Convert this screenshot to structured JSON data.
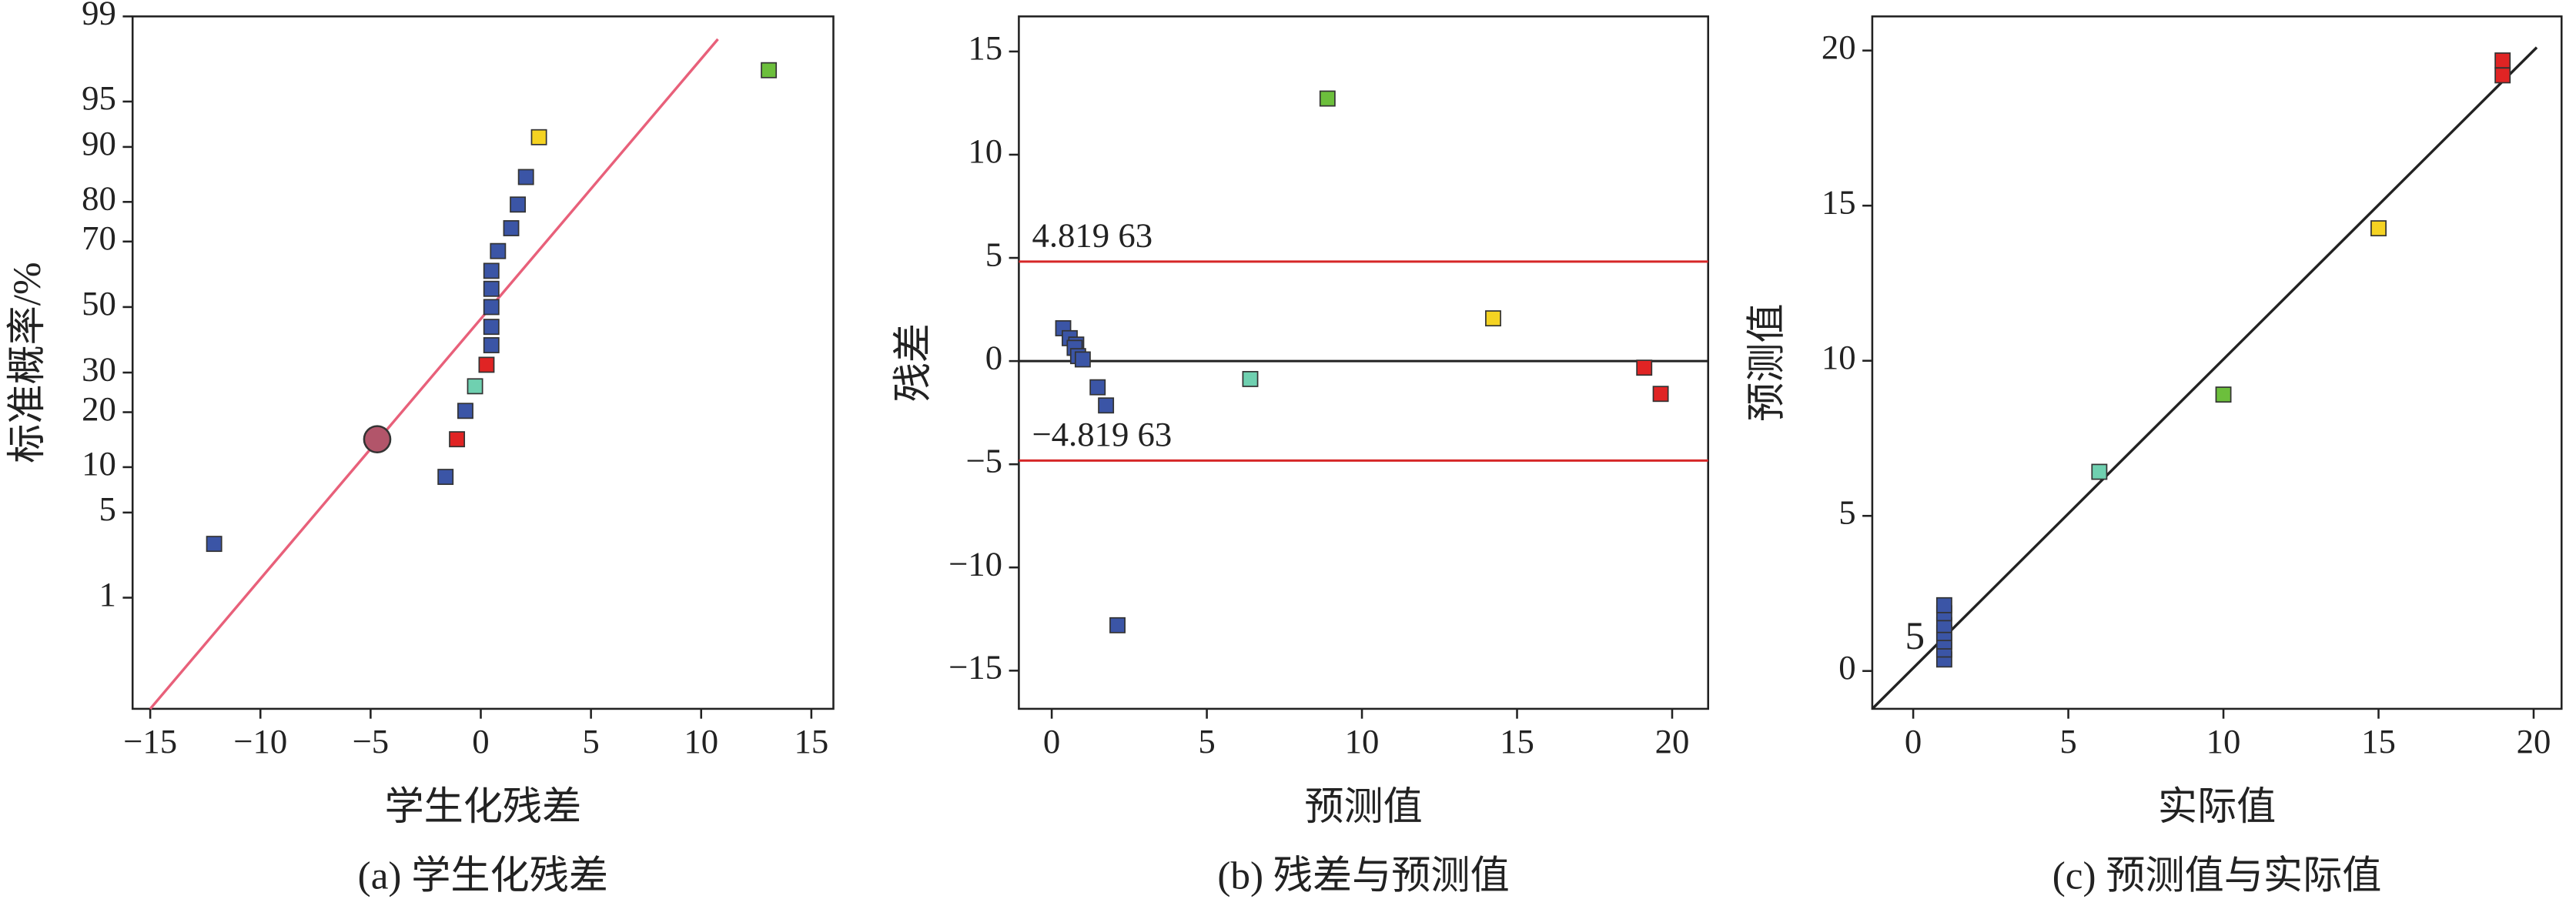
{
  "chart_data": [
    {
      "type": "probability",
      "yscale": "probit",
      "xlabel": "学生化残差",
      "ylabel": "标准概率/%",
      "caption": "(a) 学生化残差",
      "xlim": [
        -15.8,
        16
      ],
      "ylim": [
        0.065,
        99
      ],
      "xticks": [
        {
          "value": -15,
          "label": "−15"
        },
        {
          "value": -10,
          "label": "−10"
        },
        {
          "value": -5,
          "label": "−5"
        },
        0,
        5,
        10,
        15
      ],
      "yticks": [
        1,
        5,
        10,
        20,
        30,
        50,
        70,
        80,
        90,
        95,
        99
      ],
      "fit_line": {
        "x": [
          -15,
          10.76
        ],
        "y": [
          0.065,
          98.4
        ],
        "color": "#e8607a"
      },
      "points": {
        "x": [
          -12.1,
          -1.6,
          -1.08,
          -0.7,
          -0.26,
          0.26,
          0.48,
          0.48,
          0.48,
          0.48,
          0.48,
          0.78,
          1.38,
          1.68,
          2.05,
          2.64,
          13.07
        ],
        "y": [
          2.9,
          8.7,
          14.5,
          20.3,
          26.3,
          32.2,
          38,
          43.7,
          50,
          55.8,
          61.4,
          67.3,
          73.6,
          79.4,
          85.1,
          91.3,
          97.1
        ],
        "colors": [
          "#3b55a6",
          "#3b55a6",
          "#e02424",
          "#3b55a6",
          "#6fd0b0",
          "#e02424",
          "#3b55a6",
          "#3b55a6",
          "#3b55a6",
          "#3b55a6",
          "#3b55a6",
          "#3b55a6",
          "#3b55a6",
          "#3b55a6",
          "#3b55a6",
          "#f5d322",
          "#6cbf3c"
        ]
      },
      "highlight": {
        "x": -4.7,
        "y": 14.5,
        "color": "#b2556a"
      }
    },
    {
      "type": "scatter",
      "xlabel": "预测值",
      "ylabel": "残差",
      "caption": "(b) 残差与预测值",
      "xlim": [
        -1.06,
        21.16
      ],
      "ylim": [
        -16.85,
        16.7
      ],
      "xticks": [
        0,
        5,
        10,
        15,
        20
      ],
      "yticks": [
        {
          "value": -15,
          "label": "−15"
        },
        {
          "value": -10,
          "label": "−10"
        },
        {
          "value": -5,
          "label": "−5"
        },
        0,
        5,
        10,
        15
      ],
      "hlines": [
        {
          "value": 4.81963,
          "label": "4.819 63",
          "color": "#d62728"
        },
        {
          "value": -4.81963,
          "label": "−4.819 63",
          "color": "#d62728"
        },
        {
          "value": 0,
          "color": "#222222"
        }
      ],
      "points": {
        "x": [
          0.37,
          0.58,
          0.79,
          0.74,
          0.85,
          1.0,
          1.48,
          1.75,
          2.12,
          6.4,
          8.89,
          14.23,
          19.1,
          19.63
        ],
        "y": [
          1.59,
          1.11,
          0.8,
          0.64,
          0.24,
          0.08,
          -1.27,
          -2.15,
          -12.8,
          -0.87,
          12.72,
          2.07,
          -0.32,
          -1.59
        ],
        "colors": [
          "#3b55a6",
          "#3b55a6",
          "#3b55a6",
          "#3b55a6",
          "#3b55a6",
          "#3b55a6",
          "#3b55a6",
          "#3b55a6",
          "#3b55a6",
          "#6fd0b0",
          "#6cbf3c",
          "#f5d322",
          "#e02424",
          "#e02424"
        ]
      }
    },
    {
      "type": "scatter",
      "xlabel": "实际值",
      "ylabel": "预测值",
      "caption": "(c) 预测值与实际值",
      "xlim": [
        -1.32,
        20.9
      ],
      "ylim": [
        -1.22,
        21.1
      ],
      "xticks": [
        0,
        5,
        10,
        15,
        20
      ],
      "yticks": [
        0,
        5,
        10,
        15,
        20
      ],
      "fit_line": {
        "x": [
          -1.3,
          20.1
        ],
        "y": [
          -1.2,
          20.1
        ],
        "color": "#222222"
      },
      "annotations": [
        "5"
      ],
      "points": {
        "x": [
          1,
          1,
          1,
          1,
          1,
          1,
          1,
          6,
          10,
          15,
          19,
          19
        ],
        "y": [
          0.37,
          0.69,
          0.95,
          1.22,
          1.48,
          1.86,
          2.12,
          6.42,
          8.91,
          14.27,
          19.68,
          19.2
        ],
        "colors": [
          "#3b55a6",
          "#3b55a6",
          "#3b55a6",
          "#3b55a6",
          "#3b55a6",
          "#3b55a6",
          "#3b55a6",
          "#6fd0b0",
          "#6cbf3c",
          "#f5d322",
          "#e02424",
          "#e02424"
        ]
      }
    }
  ]
}
